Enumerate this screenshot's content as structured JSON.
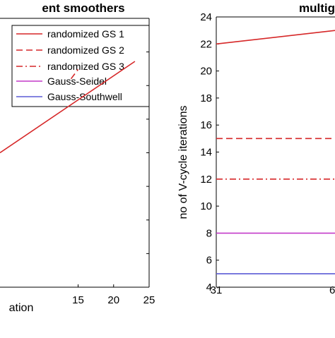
{
  "colors": {
    "red": "#d62728",
    "magenta": "#c33ac9",
    "blue": "#5b5bd6",
    "axis": "#000000"
  },
  "chart_data": [
    {
      "type": "line",
      "title": "ent smoothers",
      "xlabel": "ation",
      "ylabel": "",
      "xlim": [
        4,
        25
      ],
      "xticks": [
        15,
        20,
        25
      ],
      "xtick_labels": [
        "15",
        "20",
        "25"
      ],
      "grid": false,
      "legend": {
        "placement": "top-right",
        "entries": [
          {
            "name": "randomized GS 1",
            "color": "#d62728",
            "style": "solid"
          },
          {
            "name": "randomized GS 2",
            "color": "#d62728",
            "style": "dashed"
          },
          {
            "name": "randomized GS 3",
            "color": "#d62728",
            "style": "dashdot"
          },
          {
            "name": "Gauss-Seidel",
            "color": "#c33ac9",
            "style": "solid"
          },
          {
            "name": "Gauss-Southwell",
            "color": "#5b5bd6",
            "style": "solid"
          }
        ]
      },
      "series": [
        {
          "name": "randomized GS 1",
          "color": "#d62728",
          "style": "solid",
          "points": [
            [
              4,
              0.5
            ],
            [
              23,
              0.16
            ]
          ]
        },
        {
          "name": "randomized GS 2",
          "color": "#d62728",
          "style": "dashed",
          "points": [
            [
              14,
              0.225
            ],
            [
              15,
              0.19
            ]
          ]
        }
      ]
    },
    {
      "type": "line",
      "title": "multig",
      "xlabel": "",
      "ylabel": "no of V-cycle iterations",
      "x_labels_shown": [
        "31",
        "6"
      ],
      "ylim": [
        4,
        24
      ],
      "yticks": [
        4,
        6,
        8,
        10,
        12,
        14,
        16,
        18,
        20,
        22,
        24
      ],
      "grid": false,
      "series": [
        {
          "name": "randomized GS 1",
          "color": "#d62728",
          "style": "solid",
          "points": [
            [
              0,
              22
            ],
            [
              1,
              23
            ]
          ]
        },
        {
          "name": "randomized GS 2",
          "color": "#d62728",
          "style": "dashed",
          "points": [
            [
              0,
              15
            ],
            [
              1,
              15
            ]
          ]
        },
        {
          "name": "randomized GS 3",
          "color": "#d62728",
          "style": "dashdot",
          "points": [
            [
              0,
              12
            ],
            [
              1,
              12
            ]
          ]
        },
        {
          "name": "Gauss-Seidel",
          "color": "#c33ac9",
          "style": "solid",
          "points": [
            [
              0,
              8
            ],
            [
              1,
              8
            ]
          ]
        },
        {
          "name": "Gauss-Southwell",
          "color": "#5b5bd6",
          "style": "solid",
          "points": [
            [
              0,
              5
            ],
            [
              1,
              5
            ]
          ]
        }
      ]
    }
  ]
}
